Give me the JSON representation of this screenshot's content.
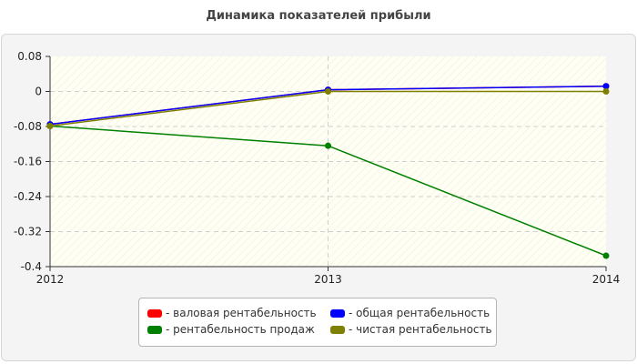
{
  "chart_data": {
    "type": "line",
    "title": "Динамика показателей прибыли",
    "xlabel": "",
    "ylabel": "",
    "x": [
      "2012",
      "2013",
      "2014"
    ],
    "ylim": [
      -0.4,
      0.08
    ],
    "yticks": [
      "0.08",
      "0",
      "-0.08",
      "-0.16",
      "-0.24",
      "-0.32",
      "-0.4"
    ],
    "grid": true,
    "legend_position": "bottom",
    "series": [
      {
        "name": "валовая рентабельность",
        "legend_label": "- валовая рентабельность",
        "color": "#ff0000",
        "values": [
          -0.075,
          0.004,
          0.012
        ]
      },
      {
        "name": "общая рентабельность",
        "legend_label": "- общая рентабельность",
        "color": "#0000ff",
        "values": [
          -0.075,
          0.004,
          0.012
        ]
      },
      {
        "name": "рентабельность продаж",
        "legend_label": "- рентабельность продаж",
        "color": "#008000",
        "values": [
          -0.079,
          -0.124,
          -0.375
        ]
      },
      {
        "name": "чистая рентабельность",
        "legend_label": "- чистая рентабельность",
        "color": "#808000",
        "values": [
          -0.079,
          0.0,
          0.0
        ]
      }
    ]
  }
}
